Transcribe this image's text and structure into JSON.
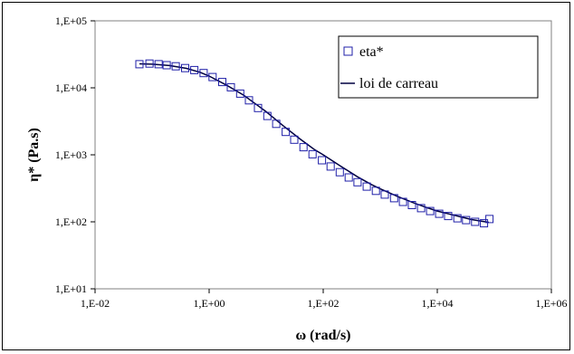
{
  "chart_data": {
    "type": "scatter",
    "xlabel": "ω (rad/s)",
    "ylabel": "η* (Pa.s)",
    "x_scale": "log",
    "y_scale": "log",
    "xlim": [
      0.01,
      1000000
    ],
    "ylim": [
      10,
      100000
    ],
    "grid": false,
    "legend_position": "top-right",
    "x_ticks": [
      {
        "value": 0.01,
        "label": "1,E-02"
      },
      {
        "value": 1,
        "label": "1,E+00"
      },
      {
        "value": 100,
        "label": "1,E+02"
      },
      {
        "value": 10000,
        "label": "1,E+04"
      },
      {
        "value": 1000000,
        "label": "1,E+06"
      }
    ],
    "y_ticks": [
      {
        "value": 10,
        "label": "1,E+01"
      },
      {
        "value": 100,
        "label": "1,E+02"
      },
      {
        "value": 1000,
        "label": "1,E+03"
      },
      {
        "value": 10000,
        "label": "1,E+04"
      },
      {
        "value": 100000,
        "label": "1,E+05"
      }
    ],
    "series": [
      {
        "name": "eta*",
        "style": "marker",
        "marker": "open-square",
        "color": "#1f1fa8",
        "x": [
          0.06,
          0.09,
          0.13,
          0.18,
          0.26,
          0.38,
          0.55,
          0.8,
          1.15,
          1.7,
          2.4,
          3.5,
          5,
          7.2,
          10.5,
          15,
          22,
          31,
          45,
          65,
          95,
          135,
          195,
          280,
          400,
          580,
          840,
          1200,
          1750,
          2500,
          3600,
          5200,
          7500,
          10800,
          15500,
          22500,
          32000,
          46000,
          66000,
          82000
        ],
        "y": [
          22500,
          23000,
          22500,
          21800,
          21000,
          19700,
          18400,
          16600,
          14500,
          12200,
          10200,
          8200,
          6500,
          5000,
          3800,
          2900,
          2200,
          1680,
          1300,
          1020,
          830,
          670,
          550,
          460,
          390,
          335,
          290,
          255,
          225,
          198,
          178,
          160,
          145,
          132,
          122,
          113,
          106,
          100,
          95,
          110
        ]
      },
      {
        "name": "loi de carreau",
        "style": "line",
        "color": "#000040",
        "x": [
          0.06,
          0.1,
          0.2,
          0.4,
          0.7,
          1,
          2,
          4,
          7,
          10,
          20,
          40,
          70,
          100,
          200,
          400,
          700,
          1000,
          2000,
          4000,
          7000,
          10000,
          20000,
          40000,
          80000
        ],
        "y": [
          22800,
          22500,
          21500,
          19500,
          17000,
          15000,
          11000,
          7800,
          5500,
          4400,
          2700,
          1700,
          1200,
          1000,
          680,
          470,
          360,
          310,
          240,
          190,
          160,
          145,
          125,
          108,
          98
        ]
      }
    ]
  }
}
